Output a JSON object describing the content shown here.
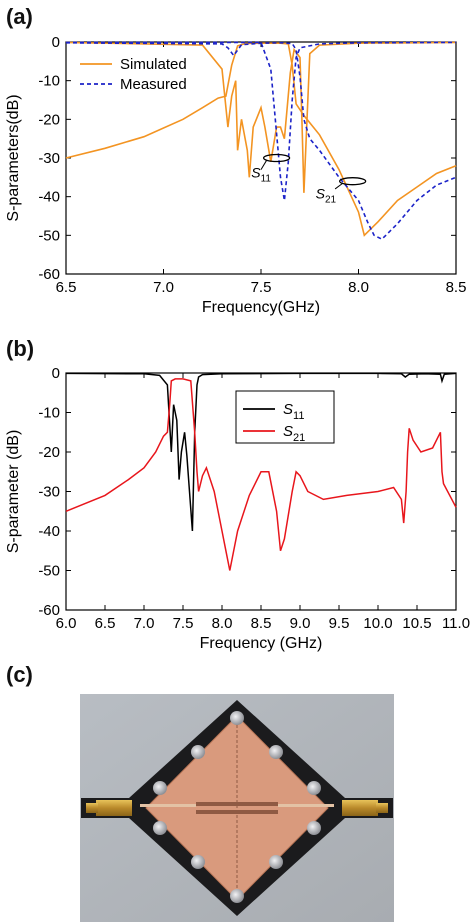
{
  "panels": {
    "a": "(a)",
    "b": "(b)",
    "c": "(c)"
  },
  "colors": {
    "simulated": "#f39422",
    "measured": "#1c23c8",
    "s11": "#000000",
    "s21": "#e8161c"
  },
  "chart_data": [
    {
      "type": "line",
      "xlabel": "Frequency(GHz)",
      "ylabel": "S-parameters(dB)",
      "xlim": [
        6.5,
        8.5
      ],
      "ylim": [
        -60,
        0
      ],
      "xticks": [
        "6.5",
        "7.0",
        "7.5",
        "8.0",
        "8.5"
      ],
      "yticks": [
        "0",
        "-10",
        "-20",
        "-30",
        "-40",
        "-50",
        "-60"
      ],
      "grid": false,
      "legend_position": "top-left",
      "annotations": [
        {
          "text": "S",
          "sub": "11"
        },
        {
          "text": "S",
          "sub": "21"
        }
      ],
      "series": [
        {
          "name": "Simulated",
          "line_style": "solid",
          "color": "#f39422",
          "s21": {
            "x": [
              6.5,
              6.7,
              6.9,
              7.1,
              7.2,
              7.28,
              7.32,
              7.35,
              7.38,
              7.42,
              7.5,
              7.6,
              7.64,
              7.66,
              7.68,
              7.72,
              7.8,
              7.9,
              8.0,
              8.03,
              8.1,
              8.2,
              8.3,
              8.4,
              8.5
            ],
            "y": [
              -30,
              -27.5,
              -24.5,
              -20,
              -17,
              -14.5,
              -14,
              -6,
              -1,
              -0.4,
              -0.3,
              -0.3,
              -0.5,
              -6,
              -16,
              -19,
              -24,
              -33,
              -44,
              -50,
              -46.5,
              -41,
              -37.5,
              -34,
              -32
            ]
          },
          "s11": {
            "x": [
              6.5,
              7.2,
              7.3,
              7.33,
              7.35,
              7.37,
              7.38,
              7.4,
              7.43,
              7.44,
              7.46,
              7.5,
              7.52,
              7.55,
              7.58,
              7.6,
              7.62,
              7.65,
              7.67,
              7.7,
              7.71,
              7.72,
              7.75,
              7.8,
              8.0,
              8.5
            ],
            "y": [
              -0.1,
              -0.8,
              -7,
              -22,
              -14,
              -10,
              -28,
              -20,
              -28,
              -35,
              -22,
              -17,
              -22,
              -31,
              -22,
              -22,
              -25,
              -8,
              -2,
              -4,
              -20,
              -39,
              -3,
              -0.8,
              -0.3,
              -0.1
            ]
          }
        },
        {
          "name": "Measured",
          "line_style": "dashed",
          "color": "#1c23c8",
          "s21": {
            "x": [
              6.5,
              7.3,
              7.33,
              7.36,
              7.4,
              7.5,
              7.6,
              7.66,
              7.68,
              7.7,
              7.72,
              7.75,
              7.8,
              7.9,
              8.0,
              8.05,
              8.08,
              8.12,
              8.2,
              8.3,
              8.4,
              8.5
            ],
            "y": [
              -0.2,
              -0.5,
              -1.5,
              -3.5,
              -0.7,
              -0.3,
              -0.2,
              -0.4,
              -2,
              -9,
              -20,
              -25,
              -28,
              -35,
              -41,
              -47,
              -50,
              -51,
              -47,
              -41,
              -37,
              -35
            ]
          },
          "s11": {
            "x": [
              6.5,
              7.5,
              7.55,
              7.6,
              7.62,
              7.64,
              7.66,
              7.68,
              7.7,
              7.8,
              8.0,
              8.5
            ],
            "y": [
              -0.1,
              -0.1,
              -7,
              -35,
              -41,
              -31,
              -15,
              -4,
              -1.5,
              -0.5,
              -0.2,
              -0.1
            ]
          }
        }
      ]
    },
    {
      "type": "line",
      "xlabel": "Frequency (GHz)",
      "ylabel": "S-parameter (dB)",
      "xlim": [
        6.0,
        11.0
      ],
      "ylim": [
        -60,
        0
      ],
      "xticks": [
        "6.0",
        "6.5",
        "7.0",
        "7.5",
        "8.0",
        "8.5",
        "9.0",
        "9.5",
        "10.0",
        "10.5",
        "11.0"
      ],
      "yticks": [
        "0",
        "-10",
        "-20",
        "-30",
        "-40",
        "-50",
        "-60"
      ],
      "grid": false,
      "legend_position": "top-right",
      "series": [
        {
          "name": "S",
          "sub": "11",
          "color": "#000000",
          "x": [
            6.0,
            7.0,
            7.2,
            7.3,
            7.32,
            7.35,
            7.38,
            7.42,
            7.45,
            7.48,
            7.52,
            7.55,
            7.58,
            7.62,
            7.65,
            7.68,
            7.7,
            7.75,
            8.0,
            9.0,
            10.0,
            10.3,
            10.35,
            10.4,
            10.6,
            10.8,
            10.82,
            10.85,
            11.0
          ],
          "y": [
            -0.1,
            -0.2,
            -0.6,
            -3,
            -10,
            -20,
            -8,
            -12,
            -27,
            -20,
            -15,
            -21,
            -29,
            -40,
            -15,
            -3,
            -1,
            -0.4,
            -0.2,
            -0.1,
            -0.1,
            -0.2,
            -1,
            -0.3,
            -0.2,
            -0.3,
            -2,
            -0.3,
            -0.1
          ]
        },
        {
          "name": "S",
          "sub": "21",
          "color": "#e8161c",
          "x": [
            6.0,
            6.5,
            6.8,
            7.0,
            7.15,
            7.25,
            7.3,
            7.33,
            7.35,
            7.4,
            7.5,
            7.6,
            7.65,
            7.68,
            7.7,
            7.75,
            7.8,
            7.9,
            8.0,
            8.05,
            8.1,
            8.2,
            8.35,
            8.5,
            8.6,
            8.7,
            8.75,
            8.8,
            8.9,
            8.95,
            9.0,
            9.1,
            9.3,
            9.6,
            10.0,
            10.2,
            10.3,
            10.33,
            10.36,
            10.38,
            10.4,
            10.45,
            10.55,
            10.7,
            10.8,
            10.82,
            10.84,
            11.0
          ],
          "y": [
            -35,
            -31,
            -27,
            -24,
            -20,
            -16,
            -15,
            -8,
            -2,
            -1.5,
            -1.5,
            -2,
            -15,
            -25,
            -30,
            -26,
            -24,
            -30,
            -40,
            -45,
            -50,
            -40,
            -31,
            -25,
            -25,
            -35,
            -45,
            -42,
            -30,
            -25,
            -26,
            -30,
            -32,
            -31,
            -30,
            -29,
            -32,
            -38,
            -30,
            -20,
            -14,
            -17,
            -20,
            -19,
            -15,
            -25,
            -28,
            -34
          ]
        }
      ]
    }
  ],
  "photo": {
    "description_free": true
  }
}
